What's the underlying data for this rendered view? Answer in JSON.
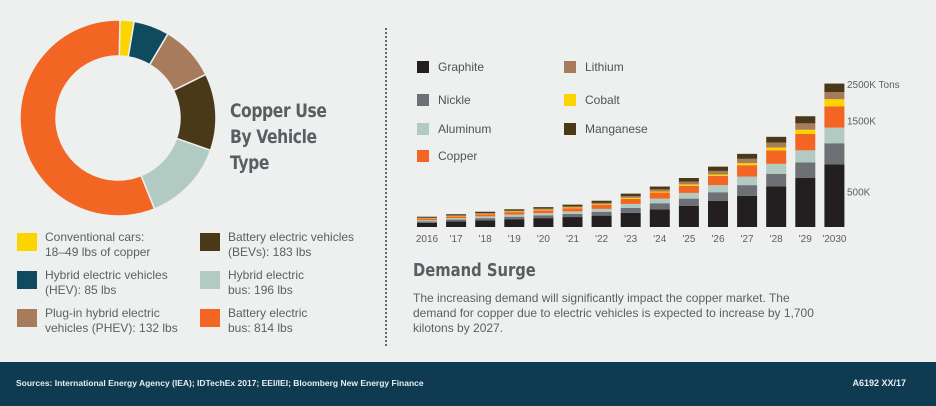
{
  "colors": {
    "graphite": "#231f20",
    "lithium": "#a67c5c",
    "nickle": "#6d7176",
    "cobalt": "#fcd500",
    "aluminum": "#b2cbc2",
    "manganese": "#4a3918",
    "copper": "#f26522",
    "hev": "#104a5e",
    "footer": "#0e3a52"
  },
  "donut_title_lines": [
    "Copper Use",
    "By Vehicle Type"
  ],
  "donut_legend": [
    {
      "lines": [
        "Conventional cars:",
        "18–49 lbs of copper"
      ],
      "color": "#fcd500"
    },
    {
      "lines": [
        "Hybrid electric vehicles",
        "(HEV): 85 lbs"
      ],
      "color": "#104a5e"
    },
    {
      "lines": [
        "Plug-in hybrid electric",
        "vehicles (PHEV): 132 lbs"
      ],
      "color": "#a67c5c"
    },
    {
      "lines": [
        "Battery electric vehicles",
        "(BEVs): 183 lbs"
      ],
      "color": "#4a3918"
    },
    {
      "lines": [
        "Hybrid electric",
        "bus: 196 lbs"
      ],
      "color": "#b2cbc2"
    },
    {
      "lines": [
        "Battery electric",
        "bus: 814 lbs"
      ],
      "color": "#f26522"
    }
  ],
  "surge": {
    "title": "Demand Surge",
    "text": "The increasing demand will significantly impact the copper market. The demand for copper due to electric vehicles is expected to increase by 1,700 kilotons by 2027."
  },
  "footer": {
    "sources": "Sources: International Energy Agency (IEA); IDTechEx 2017; EEI/IEI; Bloomberg New Energy Finance",
    "code": "A6192 XX/17"
  },
  "chart_data": [
    {
      "type": "pie",
      "title": "Copper Use By Vehicle Type",
      "slices": [
        {
          "label": "Conventional cars",
          "value": 33.5,
          "color": "#fcd500"
        },
        {
          "label": "Hybrid electric vehicles (HEV)",
          "value": 85,
          "color": "#104a5e"
        },
        {
          "label": "Plug-in hybrid electric vehicles (PHEV)",
          "value": 132,
          "color": "#a67c5c"
        },
        {
          "label": "Battery electric vehicles (BEVs)",
          "value": 183,
          "color": "#4a3918"
        },
        {
          "label": "Hybrid electric bus",
          "value": 196,
          "color": "#b2cbc2"
        },
        {
          "label": "Battery electric bus",
          "value": 814,
          "color": "#f26522"
        }
      ]
    },
    {
      "type": "bar",
      "stacked": true,
      "categories": [
        "2016",
        "'17",
        "'18",
        "'19",
        "'20",
        "'21",
        "'22",
        "'23",
        "'24",
        "'25",
        "'26",
        "'27",
        "'28",
        "'29",
        "'2030"
      ],
      "yticks": [
        {
          "value": 500,
          "label": "500K"
        },
        {
          "value": 1500,
          "label": "1500K"
        },
        {
          "value": 2500,
          "label": "2500K Tons"
        }
      ],
      "ylim": [
        0,
        2500
      ],
      "legend": [
        {
          "name": "Graphite",
          "key": "graphite"
        },
        {
          "name": "Lithium",
          "key": "lithium"
        },
        {
          "name": "Nickle",
          "key": "nickle"
        },
        {
          "name": "Cobalt",
          "key": "cobalt"
        },
        {
          "name": "Aluminum",
          "key": "aluminum"
        },
        {
          "name": "Manganese",
          "key": "manganese"
        },
        {
          "name": "Copper",
          "key": "copper"
        }
      ],
      "series": [
        {
          "name": "Graphite",
          "color": "#231f20",
          "values": [
            60,
            80,
            95,
            110,
            125,
            140,
            160,
            200,
            250,
            300,
            370,
            440,
            570,
            690,
            880
          ]
        },
        {
          "name": "Nickle",
          "color": "#6d7176",
          "values": [
            20,
            25,
            30,
            35,
            40,
            45,
            55,
            70,
            85,
            100,
            120,
            150,
            180,
            220,
            300
          ]
        },
        {
          "name": "Aluminum",
          "color": "#b2cbc2",
          "values": [
            15,
            20,
            25,
            30,
            30,
            35,
            40,
            55,
            65,
            80,
            100,
            120,
            140,
            170,
            220
          ]
        },
        {
          "name": "Copper",
          "color": "#f26522",
          "values": [
            20,
            25,
            30,
            35,
            40,
            45,
            55,
            70,
            85,
            100,
            130,
            160,
            190,
            230,
            300
          ]
        },
        {
          "name": "Cobalt",
          "color": "#fcd500",
          "values": [
            5,
            5,
            5,
            10,
            10,
            10,
            10,
            15,
            15,
            20,
            20,
            30,
            40,
            60,
            100
          ]
        },
        {
          "name": "Lithium",
          "color": "#a67c5c",
          "values": [
            10,
            10,
            10,
            10,
            15,
            15,
            20,
            25,
            30,
            40,
            50,
            60,
            70,
            90,
            100
          ]
        },
        {
          "name": "Manganese",
          "color": "#4a3918",
          "values": [
            15,
            15,
            20,
            20,
            20,
            25,
            30,
            35,
            40,
            50,
            60,
            70,
            80,
            100,
            120
          ]
        }
      ]
    }
  ]
}
